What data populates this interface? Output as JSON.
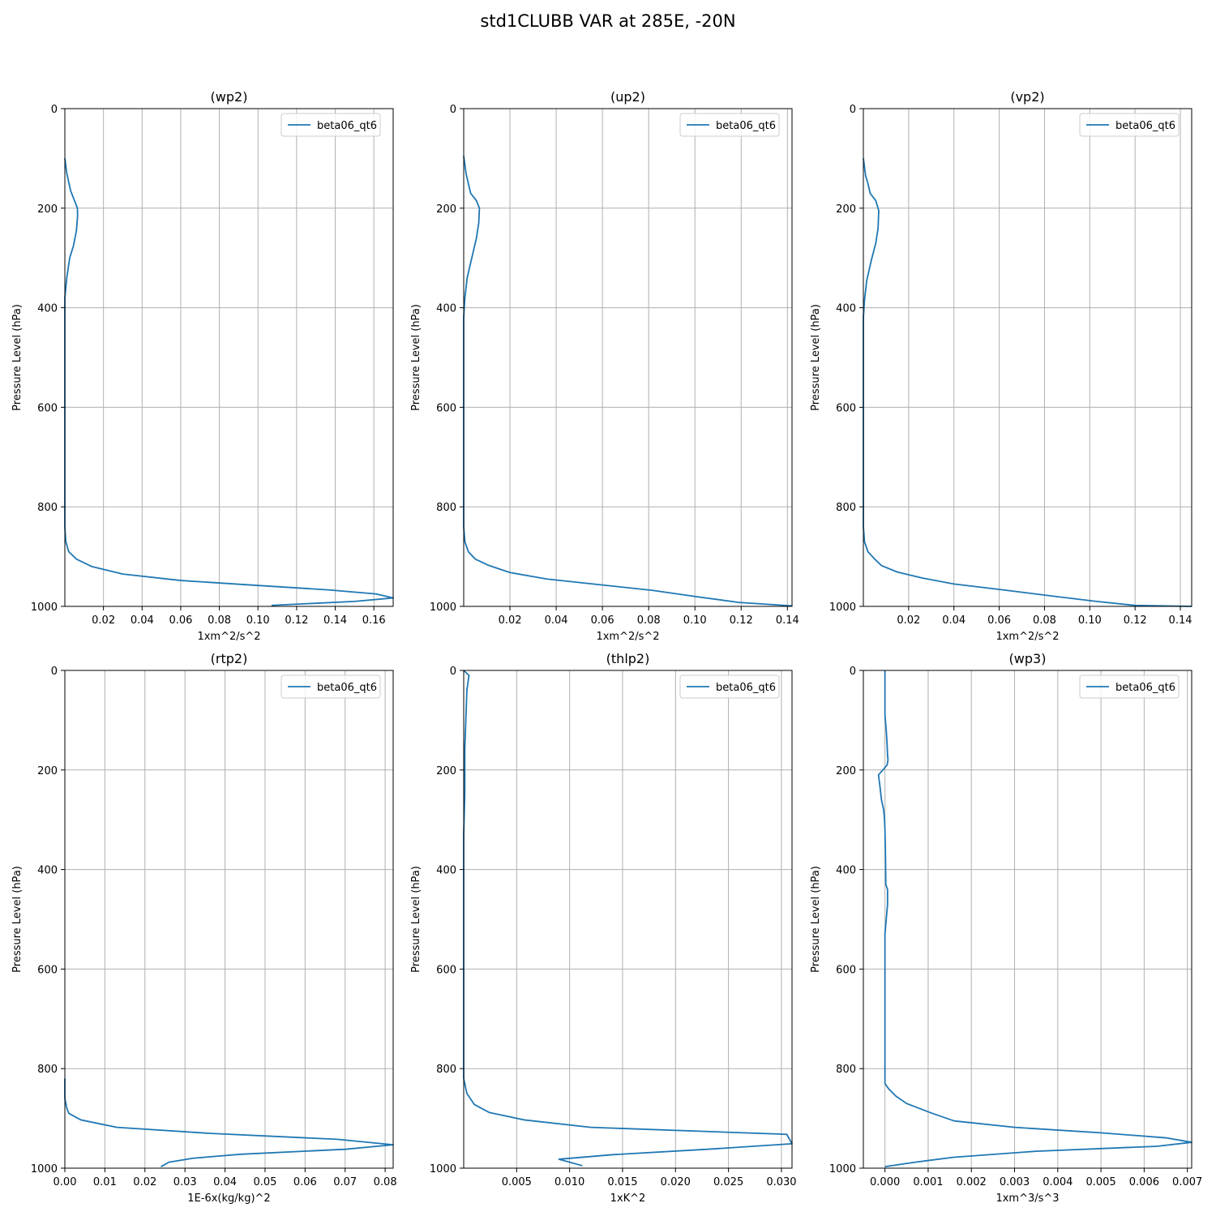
{
  "figure": {
    "title": "std1CLUBB VAR at 285E, -20N"
  },
  "colors": {
    "series": "#1f77b4",
    "grid": "#b0b0b0",
    "axis": "#000000"
  },
  "chart_data": [
    {
      "type": "line",
      "title": "(wp2)",
      "xlabel": "1xm^2/s^2",
      "ylabel": "Pressure Level (hPa)",
      "xlim": [
        0.0,
        0.17
      ],
      "ylim": [
        1000,
        0
      ],
      "xticks": [
        0.02,
        0.04,
        0.06,
        0.08,
        0.1,
        0.12,
        0.14,
        0.16
      ],
      "xtick_labels": [
        "0.02",
        "0.04",
        "0.06",
        "0.08",
        "0.10",
        "0.12",
        "0.14",
        "0.16"
      ],
      "yticks": [
        0,
        200,
        400,
        600,
        800,
        1000
      ],
      "ytick_labels": [
        "0",
        "200",
        "400",
        "600",
        "800",
        "1000"
      ],
      "grid": true,
      "legend_position": "top-right",
      "series": [
        {
          "name": "beta06_qt6",
          "x": [
            0.0,
            0.001,
            0.003,
            0.005,
            0.0065,
            0.0066,
            0.006,
            0.0045,
            0.0025,
            0.001,
            0.0,
            0.0,
            0.0,
            0.0,
            0.0005,
            0.002,
            0.006,
            0.014,
            0.03,
            0.06,
            0.1,
            0.137,
            0.161,
            0.17,
            0.15,
            0.107
          ],
          "y": [
            100,
            130,
            165,
            185,
            200,
            215,
            245,
            275,
            300,
            340,
            380,
            600,
            800,
            840,
            870,
            890,
            905,
            920,
            935,
            948,
            958,
            967,
            975,
            983,
            990,
            998
          ]
        }
      ]
    },
    {
      "type": "line",
      "title": "(up2)",
      "xlabel": "1xm^2/s^2",
      "ylabel": "Pressure Level (hPa)",
      "xlim": [
        0.0,
        0.142
      ],
      "ylim": [
        1000,
        0
      ],
      "xticks": [
        0.02,
        0.04,
        0.06,
        0.08,
        0.1,
        0.12,
        0.14
      ],
      "xtick_labels": [
        "0.02",
        "0.04",
        "0.06",
        "0.08",
        "0.10",
        "0.12",
        "0.14"
      ],
      "yticks": [
        0,
        200,
        400,
        600,
        800,
        1000
      ],
      "ytick_labels": [
        "0",
        "200",
        "400",
        "600",
        "800",
        "1000"
      ],
      "grid": true,
      "legend_position": "top-right",
      "series": [
        {
          "name": "beta06_qt6",
          "x": [
            0.0,
            0.001,
            0.002,
            0.003,
            0.0055,
            0.0068,
            0.0065,
            0.0055,
            0.0035,
            0.0015,
            0.0005,
            0.0,
            0.0,
            0.0,
            0.0005,
            0.002,
            0.005,
            0.011,
            0.02,
            0.036,
            0.06,
            0.082,
            0.1,
            0.119,
            0.142
          ],
          "y": [
            95,
            130,
            150,
            170,
            185,
            200,
            230,
            260,
            300,
            340,
            380,
            420,
            800,
            840,
            870,
            890,
            905,
            918,
            932,
            945,
            957,
            968,
            980,
            992,
            999
          ]
        }
      ]
    },
    {
      "type": "line",
      "title": "(vp2)",
      "xlabel": "1xm^2/s^2",
      "ylabel": "Pressure Level (hPa)",
      "xlim": [
        0.0,
        0.145
      ],
      "ylim": [
        1000,
        0
      ],
      "xticks": [
        0.02,
        0.04,
        0.06,
        0.08,
        0.1,
        0.12,
        0.14
      ],
      "xtick_labels": [
        "0.02",
        "0.04",
        "0.06",
        "0.08",
        "0.10",
        "0.12",
        "0.14"
      ],
      "yticks": [
        0,
        200,
        400,
        600,
        800,
        1000
      ],
      "ytick_labels": [
        "0",
        "200",
        "400",
        "600",
        "800",
        "1000"
      ],
      "grid": true,
      "legend_position": "top-right",
      "series": [
        {
          "name": "beta06_qt6",
          "x": [
            0.0,
            0.001,
            0.002,
            0.003,
            0.0055,
            0.0068,
            0.0065,
            0.0055,
            0.0035,
            0.0015,
            0.0005,
            0.0,
            0.0,
            0.0,
            0.0005,
            0.002,
            0.005,
            0.008,
            0.015,
            0.026,
            0.04,
            0.062,
            0.083,
            0.103,
            0.12,
            0.145
          ],
          "y": [
            100,
            135,
            150,
            170,
            185,
            205,
            240,
            270,
            305,
            345,
            385,
            420,
            800,
            840,
            870,
            890,
            905,
            918,
            931,
            943,
            955,
            967,
            979,
            990,
            998,
            1000
          ]
        }
      ]
    },
    {
      "type": "line",
      "title": "(rtp2)",
      "xlabel": "1E-6x(kg/kg)^2",
      "ylabel": "Pressure Level (hPa)",
      "xlim": [
        0.0,
        0.082
      ],
      "ylim": [
        1000,
        0
      ],
      "xticks": [
        0.0,
        0.01,
        0.02,
        0.03,
        0.04,
        0.05,
        0.06,
        0.07,
        0.08
      ],
      "xtick_labels": [
        "0.00",
        "0.01",
        "0.02",
        "0.03",
        "0.04",
        "0.05",
        "0.06",
        "0.07",
        "0.08"
      ],
      "yticks": [
        0,
        200,
        400,
        600,
        800,
        1000
      ],
      "ytick_labels": [
        "0",
        "200",
        "400",
        "600",
        "800",
        "1000"
      ],
      "grid": true,
      "legend_position": "top-right",
      "series": [
        {
          "name": "beta06_qt6",
          "x": [
            0.0,
            0.0,
            0.0005,
            0.001,
            0.004,
            0.013,
            0.036,
            0.068,
            0.082,
            0.07,
            0.044,
            0.032,
            0.026,
            0.024
          ],
          "y": [
            820,
            860,
            880,
            890,
            903,
            918,
            930,
            942,
            953,
            962,
            972,
            980,
            988,
            997
          ]
        }
      ]
    },
    {
      "type": "line",
      "title": "(thlp2)",
      "xlabel": "1xK^2",
      "ylabel": "Pressure Level (hPa)",
      "xlim": [
        0.0,
        0.031
      ],
      "ylim": [
        1000,
        0
      ],
      "xticks": [
        0.005,
        0.01,
        0.015,
        0.02,
        0.025,
        0.03
      ],
      "xtick_labels": [
        "0.005",
        "0.010",
        "0.015",
        "0.020",
        "0.025",
        "0.030"
      ],
      "yticks": [
        0,
        200,
        400,
        600,
        800,
        1000
      ],
      "ytick_labels": [
        "0",
        "200",
        "400",
        "600",
        "800",
        "1000"
      ],
      "grid": true,
      "legend_position": "top-right",
      "series": [
        {
          "name": "beta06_qt6",
          "x": [
            0.0,
            0.0005,
            0.0003,
            0.0002,
            0.0001,
            0.0001,
            0.0,
            0.0,
            0.0,
            0.0,
            0.0003,
            0.001,
            0.0024,
            0.0057,
            0.012,
            0.0305,
            0.031,
            0.023,
            0.014,
            0.009,
            0.0112
          ],
          "y": [
            0,
            10,
            40,
            100,
            160,
            250,
            330,
            500,
            700,
            820,
            850,
            872,
            888,
            903,
            918,
            932,
            951,
            962,
            973,
            982,
            995
          ]
        }
      ]
    },
    {
      "type": "line",
      "title": "(wp3)",
      "xlabel": "1xm^3/s^3",
      "ylabel": "Pressure Level (hPa)",
      "xlim": [
        -0.0005,
        0.0071
      ],
      "ylim": [
        1000,
        0
      ],
      "xticks": [
        0.0,
        0.001,
        0.002,
        0.003,
        0.004,
        0.005,
        0.006,
        0.007
      ],
      "xtick_labels": [
        "0.000",
        "0.001",
        "0.002",
        "0.003",
        "0.004",
        "0.005",
        "0.006",
        "0.007"
      ],
      "yticks": [
        0,
        200,
        400,
        600,
        800,
        1000
      ],
      "ytick_labels": [
        "0",
        "200",
        "400",
        "600",
        "800",
        "1000"
      ],
      "grid": true,
      "legend_position": "top-right",
      "series": [
        {
          "name": "beta06_qt6",
          "x": [
            0.0,
            0.0,
            3e-05,
            5e-05,
            6e-05,
            7e-05,
            5e-05,
            -5e-05,
            -0.00015,
            -0.00012,
            -8e-05,
            -3e-05,
            -1e-05,
            0.0,
            1e-05,
            2e-05,
            6e-05,
            6e-05,
            3e-05,
            0.0,
            0.0,
            0.0,
            8e-05,
            0.00025,
            0.0005,
            0.0011,
            0.0016,
            0.003,
            0.005,
            0.0065,
            0.0071,
            0.0063,
            0.0035,
            0.0016,
            0.0007,
            0.0
          ],
          "y": [
            0,
            90,
            120,
            150,
            170,
            180,
            190,
            200,
            210,
            230,
            260,
            280,
            300,
            320,
            360,
            430,
            440,
            470,
            500,
            530,
            700,
            830,
            840,
            855,
            870,
            890,
            905,
            918,
            929,
            939,
            948,
            956,
            966,
            978,
            988,
            997
          ]
        }
      ]
    }
  ]
}
